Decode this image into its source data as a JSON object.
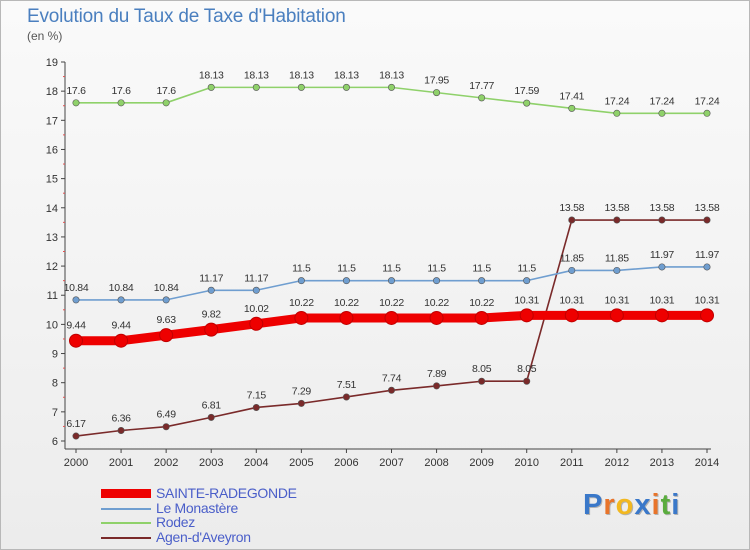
{
  "chart_data": {
    "type": "line",
    "title": "Evolution du Taux de Taxe d'Habitation",
    "subtitle": "(en %)",
    "xlabel": "",
    "ylabel": "",
    "x": [
      "2000",
      "2001",
      "2002",
      "2003",
      "2004",
      "2005",
      "2006",
      "2007",
      "2008",
      "2009",
      "2010",
      "2011",
      "2012",
      "2013",
      "2014"
    ],
    "ylim": [
      6,
      19
    ],
    "yticks": [
      "6",
      "7",
      "8",
      "9",
      "10",
      "11",
      "12",
      "13",
      "14",
      "15",
      "16",
      "17",
      "18",
      "19"
    ],
    "grid": false,
    "legend_position": "bottom-left",
    "series": [
      {
        "name": "SAINTE-RADEGONDE",
        "color": "#ee0000",
        "values": [
          9.44,
          9.44,
          9.63,
          9.82,
          10.02,
          10.22,
          10.22,
          10.22,
          10.22,
          10.22,
          10.31,
          10.31,
          10.31,
          10.31,
          10.31
        ],
        "labels": [
          "9.44",
          "9.44",
          "9.63",
          "9.82",
          "10.02",
          "10.22",
          "10.22",
          "10.22",
          "10.22",
          "10.22",
          "10.31",
          "10.31",
          "10.31",
          "10.31",
          "10.31"
        ]
      },
      {
        "name": "Le Monastère",
        "color": "#6f9ed0",
        "values": [
          10.84,
          10.84,
          10.84,
          11.17,
          11.17,
          11.5,
          11.5,
          11.5,
          11.5,
          11.5,
          11.5,
          11.85,
          11.85,
          11.97,
          11.97
        ],
        "labels": [
          "10.84",
          "10.84",
          "10.84",
          "11.17",
          "11.17",
          "11.5",
          "11.5",
          "11.5",
          "11.5",
          "11.5",
          "11.5",
          "11.85",
          "11.85",
          "11.97",
          "11.97"
        ]
      },
      {
        "name": "Rodez",
        "color": "#8fd16a",
        "values": [
          17.6,
          17.6,
          17.6,
          18.13,
          18.13,
          18.13,
          18.13,
          18.13,
          17.95,
          17.77,
          17.59,
          17.41,
          17.24,
          17.24,
          17.24
        ],
        "labels": [
          "17.6",
          "17.6",
          "17.6",
          "18.13",
          "18.13",
          "18.13",
          "18.13",
          "18.13",
          "17.95",
          "17.77",
          "17.59",
          "17.41",
          "17.24",
          "17.24",
          "17.24"
        ]
      },
      {
        "name": "Agen-d'Aveyron",
        "color": "#7a2a2a",
        "values": [
          6.17,
          6.36,
          6.49,
          6.81,
          7.15,
          7.29,
          7.51,
          7.74,
          7.89,
          8.05,
          8.05,
          13.58,
          13.58,
          13.58,
          13.58
        ],
        "labels": [
          "6.17",
          "6.36",
          "6.49",
          "6.81",
          "7.15",
          "7.29",
          "7.51",
          "7.74",
          "7.89",
          "8.05",
          "8.05",
          "13.58",
          "13.58",
          "13.58",
          "13.58"
        ]
      }
    ]
  },
  "brand": {
    "letters": [
      "P",
      "r",
      "o",
      "x",
      "i",
      "t",
      "i"
    ],
    "colors": [
      "#3a78c9",
      "#e8742a",
      "#f2b820",
      "#3a78c9",
      "#e8742a",
      "#5aac3e",
      "#3a78c9"
    ]
  }
}
